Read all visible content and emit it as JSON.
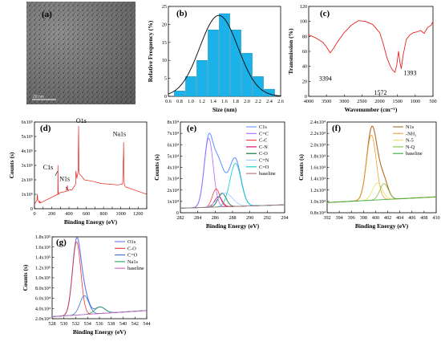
{
  "panels": {
    "a": {
      "letter": "(a)",
      "scale_text": "20 nm"
    },
    "b": {
      "letter": "(b)"
    },
    "c": {
      "letter": "(c)"
    },
    "d": {
      "letter": "(d)"
    },
    "e": {
      "letter": "(e)"
    },
    "f": {
      "letter": "(f)"
    },
    "g": {
      "letter": "(g)"
    }
  },
  "colors": {
    "bar": "#1ab2e8",
    "fit": "#000000",
    "ftir": "#e8231f",
    "survey": "#e8231f"
  },
  "chart_data": [
    {
      "id": "b",
      "type": "bar",
      "xlabel": "Size (nm)",
      "ylabel": "Relative Frequency (%)",
      "xlim": [
        0.6,
        2.6
      ],
      "ylim": [
        0,
        25
      ],
      "xticks": [
        "0.6",
        "0.8",
        "1.0",
        "1.2",
        "1.4",
        "1.6",
        "1.8",
        "2.0",
        "2.2",
        "2.4",
        "2.6"
      ],
      "yticks": [
        "0",
        "5",
        "10",
        "15",
        "20",
        "25"
      ],
      "bar_width": 0.2,
      "x": [
        0.8,
        1.0,
        1.2,
        1.4,
        1.6,
        1.8,
        2.0,
        2.2,
        2.4
      ],
      "values": [
        1.5,
        5.5,
        10,
        18.5,
        23,
        18.5,
        12,
        5.5,
        2
      ],
      "fit": {
        "type": "gaussian",
        "center": 1.5,
        "sigma": 0.34,
        "amplitude": 22.5
      }
    },
    {
      "id": "c",
      "type": "line",
      "xlabel": "Wavenumber (cm⁻¹)",
      "ylabel": "Transmission (%)",
      "xlim": [
        4000,
        500
      ],
      "ylim": [
        0,
        120
      ],
      "xticks": [
        "4000",
        "3500",
        "3000",
        "2500",
        "2000",
        "1500",
        "1000",
        "500"
      ],
      "yticks": [
        "0",
        "20",
        "40",
        "60",
        "80",
        "100",
        "120"
      ],
      "series": [
        {
          "x": [
            4000,
            3800,
            3600,
            3500,
            3394,
            3300,
            3200,
            3000,
            2800,
            2600,
            2400,
            2200,
            2000,
            1900,
            1800,
            1700,
            1650,
            1572,
            1520,
            1470,
            1430,
            1393,
            1340,
            1250,
            1150,
            1050,
            950,
            850,
            750,
            650,
            550,
            500
          ],
          "y": [
            82,
            78,
            72,
            66,
            58,
            64,
            72,
            85,
            95,
            101,
            100,
            96,
            85,
            70,
            52,
            40,
            36,
            32,
            42,
            60,
            45,
            37,
            55,
            76,
            82,
            85,
            86,
            88,
            84,
            92,
            95,
            100
          ]
        }
      ],
      "annotations": [
        "3394",
        "1572",
        "1393"
      ]
    },
    {
      "id": "d",
      "type": "line",
      "xlabel": "Binding Energy (eV)",
      "ylabel": "Counts (s)",
      "xlim": [
        0,
        1350
      ],
      "ylim": [
        0,
        600000
      ],
      "xticks": [
        "0",
        "100",
        "200",
        "300",
        "400",
        "500",
        "600",
        "700",
        "800",
        "900",
        "1000",
        "1100",
        "1200",
        "1300"
      ],
      "yticks": [
        "0",
        "1x10⁵",
        "2x10⁵",
        "3x10⁵",
        "4x10⁵",
        "5x10⁵",
        "6x10⁵"
      ],
      "series": [
        {
          "x": [
            0,
            30,
            35,
            40,
            60,
            63,
            70,
            280,
            282,
            285,
            290,
            295,
            300,
            380,
            396,
            399,
            402,
            410,
            450,
            495,
            498,
            510,
            524,
            531,
            535,
            540,
            560,
            600,
            700,
            800,
            900,
            1000,
            1060,
            1070,
            1072,
            1078,
            1085,
            1100,
            1200,
            1300,
            1350
          ],
          "y": [
            30000,
            60000,
            100000,
            60000,
            40000,
            55000,
            40000,
            100000,
            300000,
            120000,
            100000,
            100000,
            110000,
            120000,
            160000,
            135000,
            120000,
            130000,
            130000,
            170000,
            260000,
            210000,
            260000,
            570000,
            250000,
            240000,
            230000,
            200000,
            190000,
            175000,
            170000,
            165000,
            170000,
            370000,
            460000,
            180000,
            160000,
            150000,
            130000,
            110000,
            100000
          ]
        }
      ],
      "annotations": [
        "O1s",
        "Na1s",
        "C1s",
        "N1s"
      ]
    },
    {
      "id": "e",
      "type": "line",
      "xlabel": "Binding Energy (eV)",
      "ylabel": "Counts (s)",
      "xlim": [
        281,
        295
      ],
      "ylim": [
        0,
        80000
      ],
      "xticks": [
        "282",
        "284",
        "286",
        "288",
        "290",
        "292",
        "294"
      ],
      "yticks": [
        "0",
        "1x10⁴",
        "2x10⁴",
        "3x10⁴",
        "4x10⁴",
        "5x10⁴",
        "6x10⁴",
        "7x10⁴",
        "8x10⁴"
      ],
      "baseline": {
        "start": 4000,
        "end": 7000
      },
      "series": [
        {
          "name": "C1s",
          "color": "#6699ff",
          "sum": true
        },
        {
          "name": "C=C",
          "color": "#b066ff",
          "center": 284.8,
          "sigma": 0.6,
          "amp": 61000
        },
        {
          "name": "C-C",
          "color": "#ff3333",
          "center": 285.8,
          "sigma": 0.5,
          "amp": 16000
        },
        {
          "name": "C-N",
          "color": "#cc0066",
          "center": 286.1,
          "sigma": 0.5,
          "amp": 9000
        },
        {
          "name": "C-O",
          "color": "#006633",
          "center": 286.6,
          "sigma": 0.55,
          "amp": 12000
        },
        {
          "name": "C=N",
          "color": "#99ccff",
          "center": 287.0,
          "sigma": 1.0,
          "amp": 12000
        },
        {
          "name": "C=O",
          "color": "#00cccc",
          "center": 288.4,
          "sigma": 0.75,
          "amp": 38000
        },
        {
          "name": "baseline",
          "color": "#b07070"
        }
      ]
    },
    {
      "id": "f",
      "type": "line",
      "xlabel": "Binding Energy (eV)",
      "ylabel": "Counts (s)",
      "xlim": [
        392,
        410
      ],
      "ylim": [
        8000,
        24000
      ],
      "xticks": [
        "392",
        "394",
        "396",
        "398",
        "400",
        "402",
        "404",
        "406",
        "408",
        "410"
      ],
      "yticks": [
        "0.8x10⁴",
        "1.0x10⁴",
        "1.2x10⁴",
        "1.4x10⁴",
        "1.6x10⁴",
        "1.8x10⁴",
        "2.0x10⁴",
        "2.2x10⁴",
        "2.4x10⁴"
      ],
      "baseline": {
        "start": 9800,
        "end": 10800
      },
      "series": [
        {
          "name": "N1s",
          "color": "#b06a28",
          "sum": true
        },
        {
          "name": "-NH₂",
          "color": "#f0a030",
          "center": 399.3,
          "sigma": 0.8,
          "amp": 11500
        },
        {
          "name": "N-5",
          "color": "#e8e060",
          "center": 400.3,
          "sigma": 0.8,
          "amp": 3000
        },
        {
          "name": "N-Q",
          "color": "#88bb44",
          "center": 401.4,
          "sigma": 0.7,
          "amp": 2800
        },
        {
          "name": "baseline",
          "color": "#33aa33"
        }
      ]
    },
    {
      "id": "g",
      "type": "line",
      "xlabel": "Binding Energy (eV)",
      "ylabel": "Counts (s)",
      "xlim": [
        527,
        544
      ],
      "ylim": [
        20000,
        180000
      ],
      "xticks": [
        "528",
        "530",
        "532",
        "534",
        "536",
        "538",
        "540",
        "542",
        "544"
      ],
      "yticks": [
        "2.0x10⁴",
        "4.0x10⁴",
        "6.0x10⁴",
        "8.0x10⁴",
        "1.0x10⁵",
        "1.2x10⁵",
        "1.4x10⁵",
        "1.6x10⁵",
        "1.8x10⁵"
      ],
      "baseline": {
        "start": 24000,
        "end": 36000
      },
      "series": [
        {
          "name": "O1s",
          "color": "#6677ee",
          "sum": true
        },
        {
          "name": "C-O",
          "color": "#ee3333",
          "center": 531.4,
          "sigma": 0.75,
          "amp": 143000
        },
        {
          "name": "C=O",
          "color": "#3377cc",
          "center": 532.8,
          "sigma": 0.8,
          "amp": 37000
        },
        {
          "name": "Na1s",
          "color": "#22aa55",
          "center": 535.6,
          "sigma": 0.9,
          "amp": 13000
        },
        {
          "name": "baseline",
          "color": "#cc66cc"
        }
      ]
    }
  ]
}
